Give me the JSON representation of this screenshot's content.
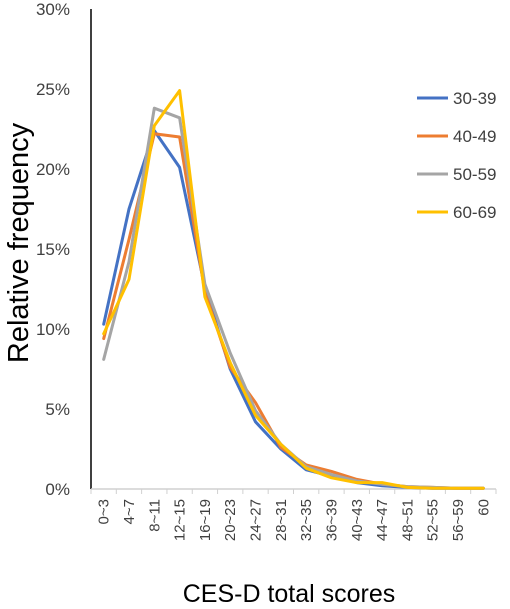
{
  "chart_data": {
    "type": "line",
    "title": "",
    "xlabel": "CES-D total scores",
    "ylabel": "Relative frequency",
    "ylim": [
      0,
      30
    ],
    "yticks": [
      "0%",
      "5%",
      "10%",
      "15%",
      "20%",
      "25%",
      "30%"
    ],
    "grid": false,
    "legend_position": "right",
    "categories": [
      "0~3",
      "4~7",
      "8~11",
      "12~15",
      "16~19",
      "20~23",
      "24~27",
      "28~31",
      "32~35",
      "36~39",
      "40~43",
      "44~47",
      "48~51",
      "52~55",
      "56~59",
      "60"
    ],
    "series": [
      {
        "name": "30-39",
        "color": "#4472C4",
        "values": [
          10.3,
          17.5,
          22.4,
          20.1,
          12.6,
          7.5,
          4.2,
          2.5,
          1.2,
          0.8,
          0.4,
          0.2,
          0.1,
          0.05,
          0.05,
          0.05
        ]
      },
      {
        "name": "40-49",
        "color": "#ED7D31",
        "values": [
          9.4,
          15.6,
          22.2,
          22.0,
          12.3,
          7.6,
          5.4,
          2.6,
          1.5,
          1.1,
          0.6,
          0.3,
          0.15,
          0.1,
          0.05,
          0.05
        ]
      },
      {
        "name": "50-59",
        "color": "#A5A5A5",
        "values": [
          8.1,
          14.2,
          23.8,
          23.2,
          12.8,
          8.5,
          4.9,
          2.8,
          1.4,
          0.9,
          0.5,
          0.3,
          0.15,
          0.1,
          0.05,
          0.05
        ]
      },
      {
        "name": "60-69",
        "color": "#FFC000",
        "values": [
          9.7,
          13.1,
          22.7,
          24.9,
          12.0,
          7.9,
          4.6,
          2.8,
          1.3,
          0.7,
          0.4,
          0.4,
          0.1,
          0.05,
          0.05,
          0.05
        ]
      }
    ]
  }
}
